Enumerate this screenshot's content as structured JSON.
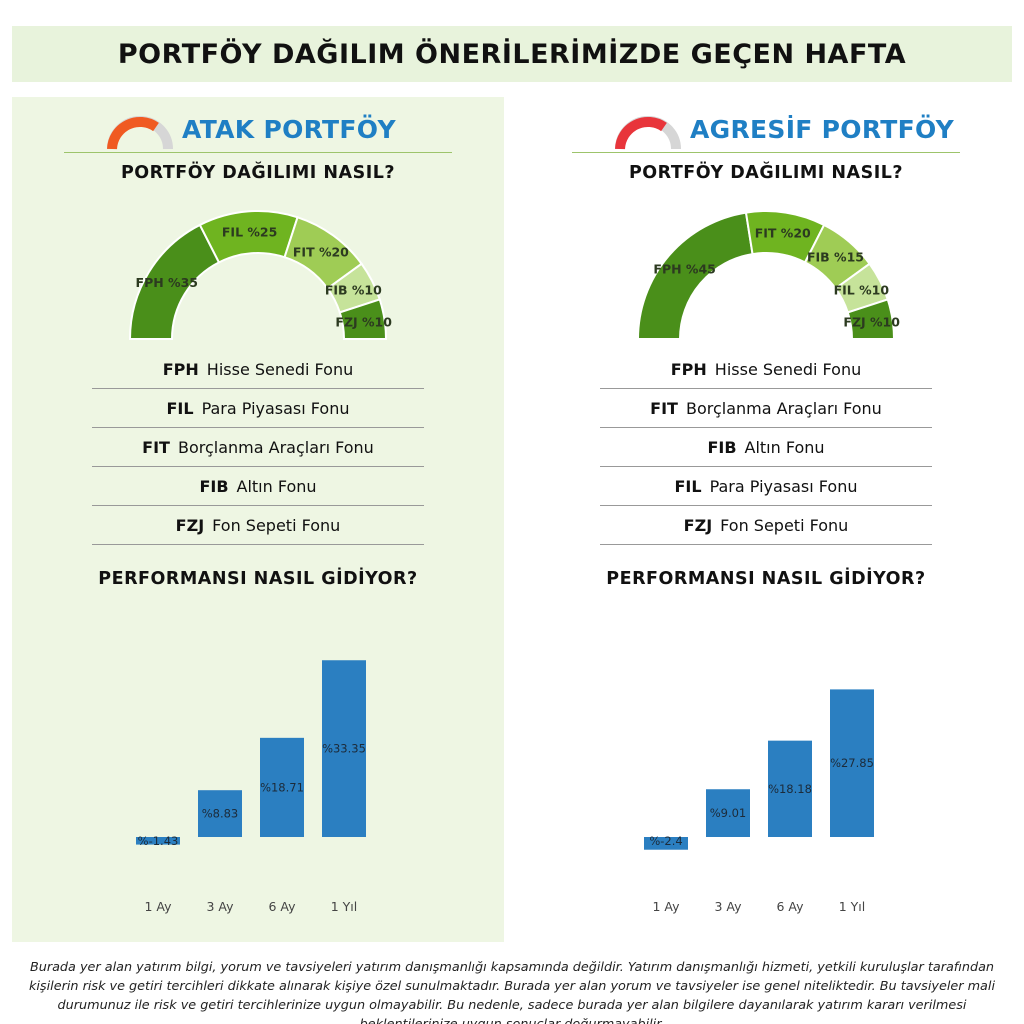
{
  "header": {
    "title": "PORTFÖY DAĞILIM ÖNERİLERİMİZDE GEÇEN HAFTA"
  },
  "colors": {
    "dark_green": "#4a8f1a",
    "mid_green": "#6fb420",
    "light_green": "#9fcc55",
    "pale_green": "#c6e39a",
    "bar_blue": "#2b7fc1",
    "title_blue": "#1f7fc4",
    "gauge_orange": "#f05a22",
    "gauge_red": "#e8353b"
  },
  "panels": [
    {
      "title": "ATAK PORTFÖY",
      "gauge_color": "#f05a22",
      "allocation_title": "PORTFÖY DAĞILIMI NASIL?",
      "allocation": [
        {
          "label": "FPH %35",
          "value": 35,
          "color": "#4a8f1a"
        },
        {
          "label": "FIL %25",
          "value": 25,
          "color": "#6fb420"
        },
        {
          "label": "FIT %20",
          "value": 20,
          "color": "#9fcc55"
        },
        {
          "label": "FIB %10",
          "value": 10,
          "color": "#c6e39a"
        },
        {
          "label": "FZJ %10",
          "value": 10,
          "color": "#4a8f1a"
        }
      ],
      "legend": [
        {
          "code": "FPH",
          "name": "Hisse Senedi Fonu"
        },
        {
          "code": "FIL",
          "name": "Para Piyasası Fonu"
        },
        {
          "code": "FIT",
          "name": "Borçlanma Araçları Fonu"
        },
        {
          "code": "FIB",
          "name": "Altın Fonu"
        },
        {
          "code": "FZJ",
          "name": "Fon Sepeti Fonu"
        }
      ],
      "performance_title": "PERFORMANSI NASIL GİDİYOR?",
      "performance": {
        "categories": [
          "1 Ay",
          "3 Ay",
          "6 Ay",
          "1 Yıl"
        ],
        "values": [
          -1.43,
          8.83,
          18.71,
          33.35
        ],
        "labels": [
          "%-1.43",
          "%8.83",
          "%18.71",
          "%33.35"
        ]
      }
    },
    {
      "title": "AGRESİF PORTFÖY",
      "gauge_color": "#e8353b",
      "allocation_title": "PORTFÖY DAĞILIMI NASIL?",
      "allocation": [
        {
          "label": "FPH %45",
          "value": 45,
          "color": "#4a8f1a"
        },
        {
          "label": "FIT %20",
          "value": 20,
          "color": "#6fb420"
        },
        {
          "label": "FIB %15",
          "value": 15,
          "color": "#9fcc55"
        },
        {
          "label": "FIL %10",
          "value": 10,
          "color": "#c6e39a"
        },
        {
          "label": "FZJ %10",
          "value": 10,
          "color": "#4a8f1a"
        }
      ],
      "legend": [
        {
          "code": "FPH",
          "name": "Hisse Senedi Fonu"
        },
        {
          "code": "FIT",
          "name": "Borçlanma Araçları Fonu"
        },
        {
          "code": "FIB",
          "name": "Altın Fonu"
        },
        {
          "code": "FIL",
          "name": "Para Piyasası Fonu"
        },
        {
          "code": "FZJ",
          "name": "Fon Sepeti Fonu"
        }
      ],
      "performance_title": "PERFORMANSI NASIL GİDİYOR?",
      "performance": {
        "categories": [
          "1 Ay",
          "3 Ay",
          "6 Ay",
          "1 Yıl"
        ],
        "values": [
          -2.4,
          9.01,
          18.18,
          27.85
        ],
        "labels": [
          "%-2.4",
          "%9.01",
          "%18.18",
          "%27.85"
        ]
      }
    }
  ],
  "chart_data": [
    {
      "type": "pie",
      "title": "PORTFÖY DAĞILIMI NASIL?",
      "categories": [
        "FPH",
        "FIL",
        "FIT",
        "FIB",
        "FZJ"
      ],
      "values": [
        35,
        25,
        20,
        10,
        10
      ]
    },
    {
      "type": "bar",
      "title": "PERFORMANSI NASIL GİDİYOR?",
      "categories": [
        "1 Ay",
        "3 Ay",
        "6 Ay",
        "1 Yıl"
      ],
      "values": [
        -1.43,
        8.83,
        18.71,
        33.35
      ]
    },
    {
      "type": "pie",
      "title": "PORTFÖY DAĞILIMI NASIL?",
      "categories": [
        "FPH",
        "FIT",
        "FIB",
        "FIL",
        "FZJ"
      ],
      "values": [
        45,
        20,
        15,
        10,
        10
      ]
    },
    {
      "type": "bar",
      "title": "PERFORMANSI NASIL GİDİYOR?",
      "categories": [
        "1 Ay",
        "3 Ay",
        "6 Ay",
        "1 Yıl"
      ],
      "values": [
        -2.4,
        9.01,
        18.18,
        27.85
      ]
    }
  ],
  "disclaimer": "Burada yer alan yatırım bilgi, yorum ve tavsiyeleri yatırım danışmanlığı kapsamında değildir. Yatırım danışmanlığı hizmeti, yetkili kuruluşlar tarafından kişilerin risk ve getiri tercihleri dikkate alınarak kişiye özel sunulmaktadır. Burada yer alan yorum ve tavsiyeler ise genel niteliktedir. Bu tavsiyeler mali durumunuz ile risk ve getiri tercihlerinize uygun olmayabilir. Bu nedenle, sadece burada yer alan bilgilere dayanılarak yatırım kararı verilmesi beklentilerinize uygun sonuçlar doğurmayabilir."
}
